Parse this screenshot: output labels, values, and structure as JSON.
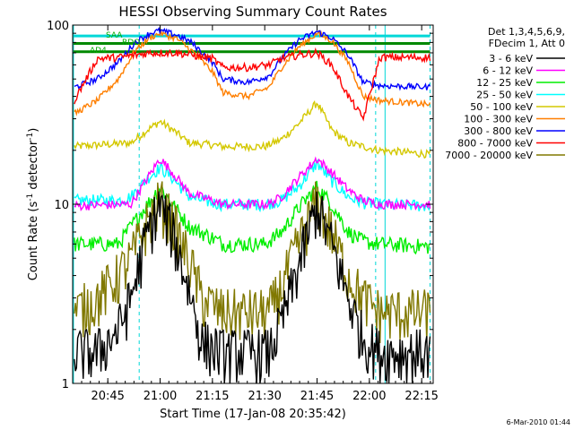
{
  "chart_data": {
    "type": "line",
    "title": "HESSI Observing Summary Count Rates",
    "xlabel": "Start Time (17-Jan-08 20:35:42)",
    "ylabel_main": "Count Rate (s",
    "ylabel_sup1": "-1",
    "ylabel_mid": " detector",
    "ylabel_sup2": "-1",
    "ylabel_end": ")",
    "y_scale": "log",
    "ylim": [
      1,
      100
    ],
    "xlim_minutes": [
      20.582,
      22.305
    ],
    "x_ticks": [
      "20:45",
      "21:00",
      "21:15",
      "21:30",
      "21:45",
      "22:00",
      "22:15"
    ],
    "x_tick_hours": [
      20.75,
      21.0,
      21.25,
      21.5,
      21.75,
      22.0,
      22.25
    ],
    "y_ticks": [
      "1",
      "10",
      "100"
    ],
    "y_tick_values": [
      1,
      10,
      100
    ],
    "legend_header": [
      "Det 1,3,4,5,6,9,",
      "FDecim 1, Att 0"
    ],
    "legend_placement": "right",
    "annotations": [
      {
        "text": "SAA",
        "color": "#00aa00"
      },
      {
        "text": "RDO",
        "color": "#00aa00"
      },
      {
        "text": "AD4",
        "color": "#00aa00"
      }
    ],
    "vertical_markers": {
      "solid_hours": [
        20.586,
        22.075
      ],
      "dashed_hours": [
        20.9,
        22.03,
        22.29
      ],
      "color": "#00d8d8"
    },
    "timestamp": "6-Mar-2010 01:44",
    "series": [
      {
        "name": "3 - 6 keV",
        "color": "#000000"
      },
      {
        "name": "6 - 12 keV",
        "color": "#ff00ff"
      },
      {
        "name": "12 - 25 keV",
        "color": "#00ee00"
      },
      {
        "name": "25 - 50 keV",
        "color": "#00ffff"
      },
      {
        "name": "50 - 100 keV",
        "color": "#d4c800"
      },
      {
        "name": "100 - 300 keV",
        "color": "#ff7f00"
      },
      {
        "name": "300 - 800 keV",
        "color": "#0000ff"
      },
      {
        "name": "800 - 7000 keV",
        "color": "#ff0000"
      },
      {
        "name": "7000 - 20000 keV",
        "color": "#807800"
      }
    ],
    "profiles": [
      {
        "hours": [
          20.59,
          20.7,
          20.8,
          20.86,
          20.94,
          21.0,
          21.06,
          21.15,
          21.2,
          21.3,
          21.42,
          21.52,
          21.58,
          21.66,
          21.75,
          21.82,
          21.9,
          21.97,
          22.05,
          22.15,
          22.29
        ],
        "values": [
          1.5,
          1.5,
          2.0,
          3.0,
          7.0,
          10.0,
          7.0,
          3.0,
          1.7,
          1.5,
          1.5,
          1.5,
          2.2,
          4.5,
          10.0,
          6.0,
          3.0,
          1.8,
          1.5,
          1.5,
          1.5
        ]
      },
      {
        "hours": [
          20.59,
          20.86,
          20.94,
          21.0,
          21.06,
          21.14,
          21.25,
          21.3,
          21.52,
          21.58,
          21.66,
          21.75,
          21.82,
          21.9,
          21.97,
          22.05,
          22.29
        ],
        "values": [
          9.8,
          10.0,
          14.0,
          18.0,
          15.0,
          11.5,
          10.5,
          10.0,
          10.0,
          11.0,
          14.0,
          18.0,
          15.0,
          12.0,
          10.5,
          10.0,
          10.0
        ]
      },
      {
        "hours": [
          20.59,
          20.8,
          20.86,
          20.94,
          21.0,
          21.06,
          21.14,
          21.25,
          21.3,
          21.5,
          21.58,
          21.66,
          21.75,
          21.82,
          21.9,
          21.97,
          22.05,
          22.29
        ],
        "values": [
          6.0,
          6.0,
          7.5,
          10.0,
          12.5,
          10.0,
          7.5,
          6.5,
          6.0,
          6.0,
          7.0,
          9.5,
          12.5,
          10.0,
          7.0,
          6.2,
          6.0,
          5.8
        ]
      },
      {
        "hours": [
          20.59,
          20.8,
          20.86,
          20.94,
          21.0,
          21.06,
          21.14,
          21.25,
          21.3,
          21.5,
          21.58,
          21.66,
          21.75,
          21.82,
          21.9,
          21.97,
          22.05,
          22.29
        ],
        "values": [
          10.5,
          10.5,
          11.0,
          14.0,
          16.0,
          14.0,
          11.0,
          10.2,
          10.0,
          10.0,
          10.5,
          12.5,
          17.0,
          13.5,
          11.0,
          10.2,
          10.0,
          9.8
        ]
      },
      {
        "hours": [
          20.59,
          20.86,
          20.94,
          21.0,
          21.06,
          21.14,
          21.25,
          21.3,
          21.5,
          21.58,
          21.66,
          21.75,
          21.82,
          21.9,
          21.97,
          22.05,
          22.29
        ],
        "values": [
          21.0,
          22.0,
          26.0,
          29.0,
          26.0,
          22.0,
          21.5,
          21.0,
          21.0,
          23.0,
          28.0,
          37.0,
          26.0,
          22.0,
          21.0,
          20.0,
          19.0
        ]
      },
      {
        "hours": [
          20.59,
          20.7,
          20.8,
          20.88,
          20.95,
          21.0,
          21.08,
          21.15,
          21.25,
          21.3,
          21.42,
          21.52,
          21.58,
          21.66,
          21.75,
          21.82,
          21.9,
          21.97,
          22.05,
          22.29
        ],
        "values": [
          32.0,
          38.0,
          50.0,
          72.0,
          85.0,
          90.0,
          84.0,
          72.0,
          55.0,
          42.0,
          40.0,
          45.0,
          58.0,
          75.0,
          90.0,
          82.0,
          62.0,
          40.0,
          38.0,
          36.0
        ]
      },
      {
        "hours": [
          20.59,
          20.7,
          20.8,
          20.88,
          20.95,
          21.0,
          21.08,
          21.15,
          21.25,
          21.3,
          21.42,
          21.52,
          21.58,
          21.66,
          21.75,
          21.82,
          21.9,
          21.97,
          22.05,
          22.29
        ],
        "values": [
          45.0,
          50.0,
          62.0,
          80.0,
          90.0,
          93.0,
          88.0,
          80.0,
          62.0,
          50.0,
          48.0,
          52.0,
          65.0,
          82.0,
          92.0,
          85.0,
          68.0,
          48.0,
          46.0,
          45.0
        ]
      },
      {
        "hours": [
          20.59,
          20.7,
          20.8,
          20.88,
          20.95,
          21.0,
          21.08,
          21.15,
          21.25,
          21.3,
          21.42,
          21.52,
          21.58,
          21.66,
          21.75,
          21.82,
          21.9,
          21.97,
          22.05,
          22.29
        ],
        "values": [
          38.0,
          65.0,
          66.0,
          68.0,
          70.0,
          70.0,
          70.0,
          68.0,
          65.0,
          58.0,
          58.0,
          60.0,
          65.0,
          68.0,
          70.0,
          60.0,
          40.0,
          30.0,
          66.0,
          66.0
        ]
      },
      {
        "hours": [
          20.59,
          20.7,
          20.8,
          20.86,
          20.94,
          21.0,
          21.06,
          21.15,
          21.2,
          21.3,
          21.42,
          21.52,
          21.58,
          21.66,
          21.75,
          21.82,
          21.9,
          21.97,
          22.05,
          22.15,
          22.29
        ],
        "values": [
          2.5,
          3.0,
          4.0,
          5.0,
          8.0,
          10.5,
          8.0,
          4.5,
          3.0,
          2.5,
          2.5,
          2.5,
          3.5,
          6.0,
          10.5,
          7.0,
          4.0,
          3.0,
          2.5,
          2.5,
          2.5
        ]
      }
    ],
    "flag_bars": [
      {
        "name": "SAA",
        "color": "#00d8d8",
        "value": 87,
        "hours": [
          20.586,
          22.29
        ]
      },
      {
        "name": "RDO",
        "color": "#008800",
        "value": 79,
        "hours": [
          20.586,
          22.29
        ]
      },
      {
        "name": "AD4",
        "color": "#008800",
        "value": 71,
        "hours": [
          20.586,
          22.29
        ]
      }
    ]
  }
}
